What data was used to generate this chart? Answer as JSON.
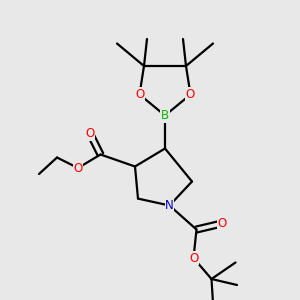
{
  "background_color": "#e8e8e8",
  "atom_colors": {
    "O": "#ff0000",
    "N": "#0000cc",
    "B": "#00bb00",
    "C": "#000000"
  },
  "bond_color": "#000000",
  "bond_width": 1.6,
  "font_size_atoms": 8.5,
  "fig_width": 3.0,
  "fig_height": 3.0,
  "dpi": 100,
  "xlim": [
    0,
    10
  ],
  "ylim": [
    0,
    10
  ]
}
